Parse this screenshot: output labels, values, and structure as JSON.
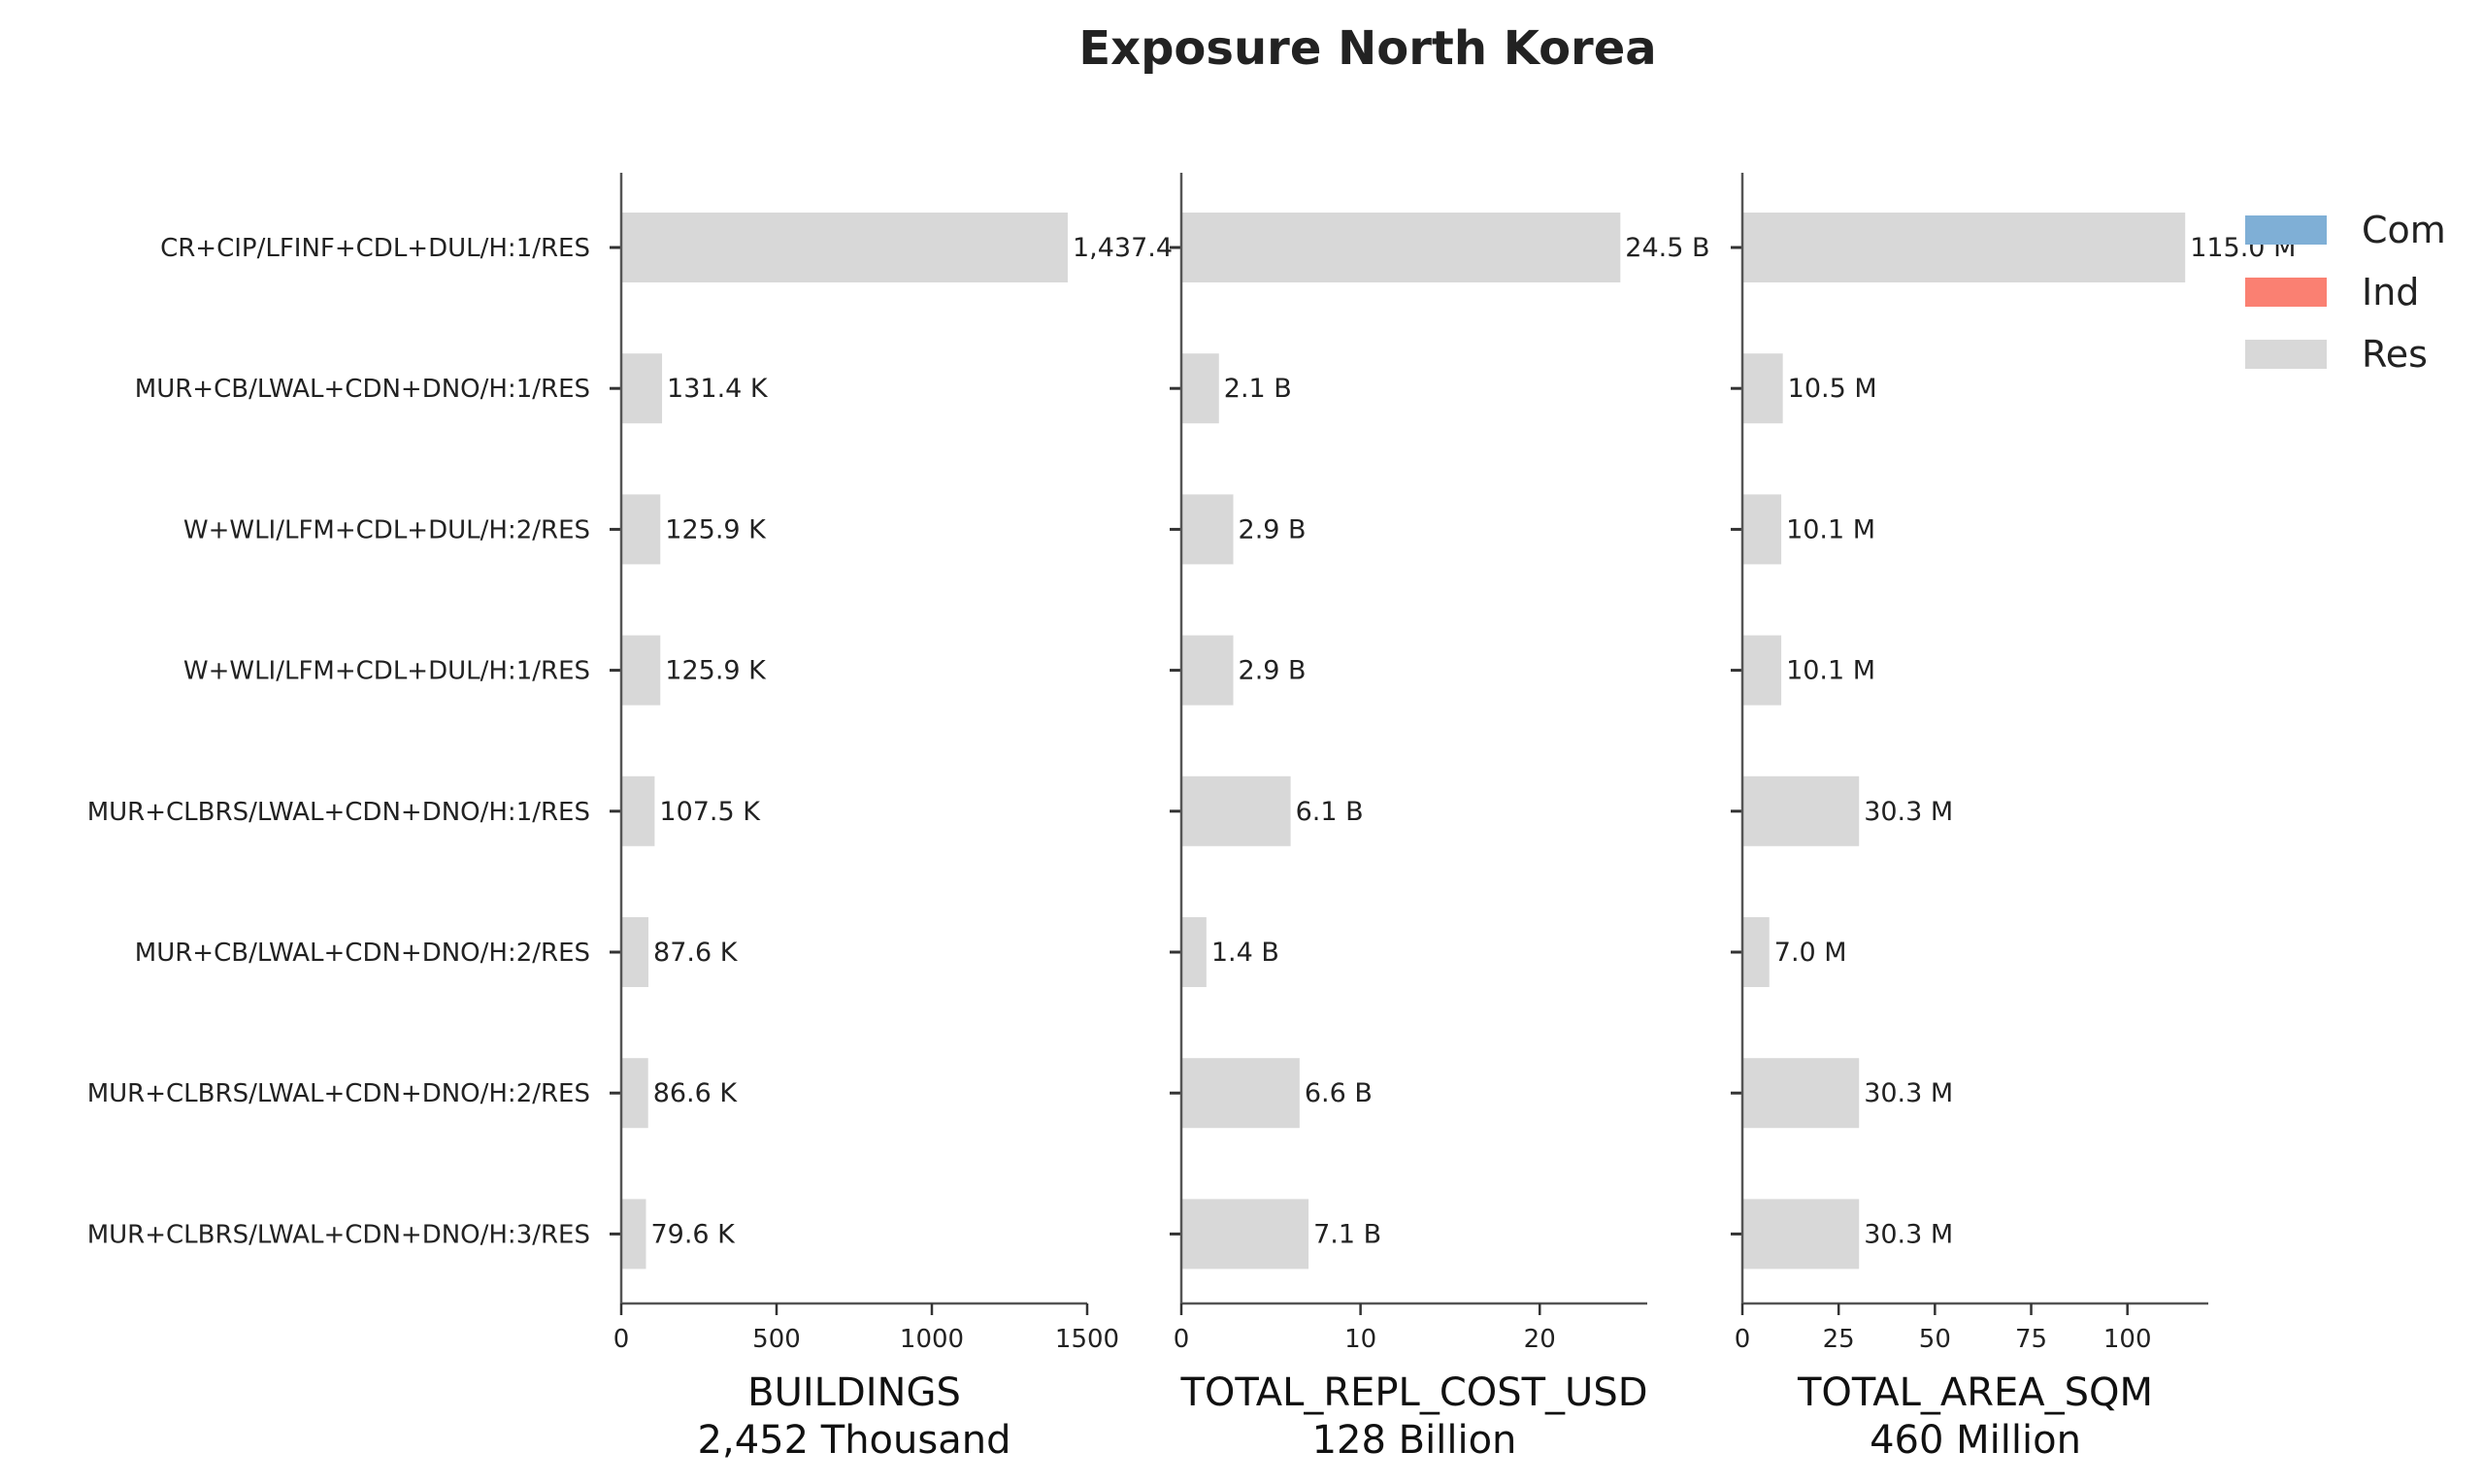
{
  "chart_data": {
    "type": "bar",
    "orientation": "horizontal",
    "title": "Exposure North Korea",
    "categories": [
      "CR+CIP/LFINF+CDL+DUL/H:1/RES",
      "MUR+CB/LWAL+CDN+DNO/H:1/RES",
      "W+WLI/LFM+CDL+DUL/H:2/RES",
      "W+WLI/LFM+CDL+DUL/H:1/RES",
      "MUR+CLBRS/LWAL+CDN+DNO/H:1/RES",
      "MUR+CB/LWAL+CDN+DNO/H:2/RES",
      "MUR+CLBRS/LWAL+CDN+DNO/H:2/RES",
      "MUR+CLBRS/LWAL+CDN+DNO/H:3/RES"
    ],
    "legend": {
      "position": "top-right",
      "entries": [
        {
          "name": "Com",
          "color": "#7fafd6"
        },
        {
          "name": "Ind",
          "color": "#fa8072"
        },
        {
          "name": "Res",
          "color": "#d8d8d8"
        }
      ]
    },
    "bar_color": "#d8d8d8",
    "grid": false,
    "panels": [
      {
        "xlabel": "BUILDINGS",
        "subtitle": "2,452 Thousand",
        "xlim": [
          0,
          1500
        ],
        "ticks": [
          0,
          500,
          1000,
          1500
        ],
        "series": [
          {
            "name": "Res",
            "values": [
              1437.4,
              131.4,
              125.9,
              125.9,
              107.5,
              87.6,
              86.6,
              79.6
            ]
          }
        ],
        "labels": [
          "1,437.4 K",
          "131.4 K",
          "125.9 K",
          "125.9 K",
          "107.5 K",
          "87.6 K",
          "86.6 K",
          "79.6 K"
        ]
      },
      {
        "xlabel": "TOTAL_REPL_COST_USD",
        "subtitle": "128 Billion",
        "xlim": [
          0,
          26
        ],
        "ticks": [
          0,
          10,
          20
        ],
        "series": [
          {
            "name": "Res",
            "values": [
              24.5,
              2.1,
              2.9,
              2.9,
              6.1,
              1.4,
              6.6,
              7.1
            ]
          }
        ],
        "labels": [
          "24.5 B",
          "2.1 B",
          "2.9 B",
          "2.9 B",
          "6.1 B",
          "1.4 B",
          "6.6 B",
          "7.1 B"
        ]
      },
      {
        "xlabel": "TOTAL_AREA_SQM",
        "subtitle": "460 Million",
        "xlim": [
          0,
          121
        ],
        "ticks": [
          0,
          25,
          50,
          75,
          100
        ],
        "series": [
          {
            "name": "Res",
            "values": [
              115.0,
              10.5,
              10.1,
              10.1,
              30.3,
              7.0,
              30.3,
              30.3
            ]
          }
        ],
        "labels": [
          "115.0 M",
          "10.5 M",
          "10.1 M",
          "10.1 M",
          "30.3 M",
          "7.0 M",
          "30.3 M",
          "30.3 M"
        ]
      }
    ]
  }
}
